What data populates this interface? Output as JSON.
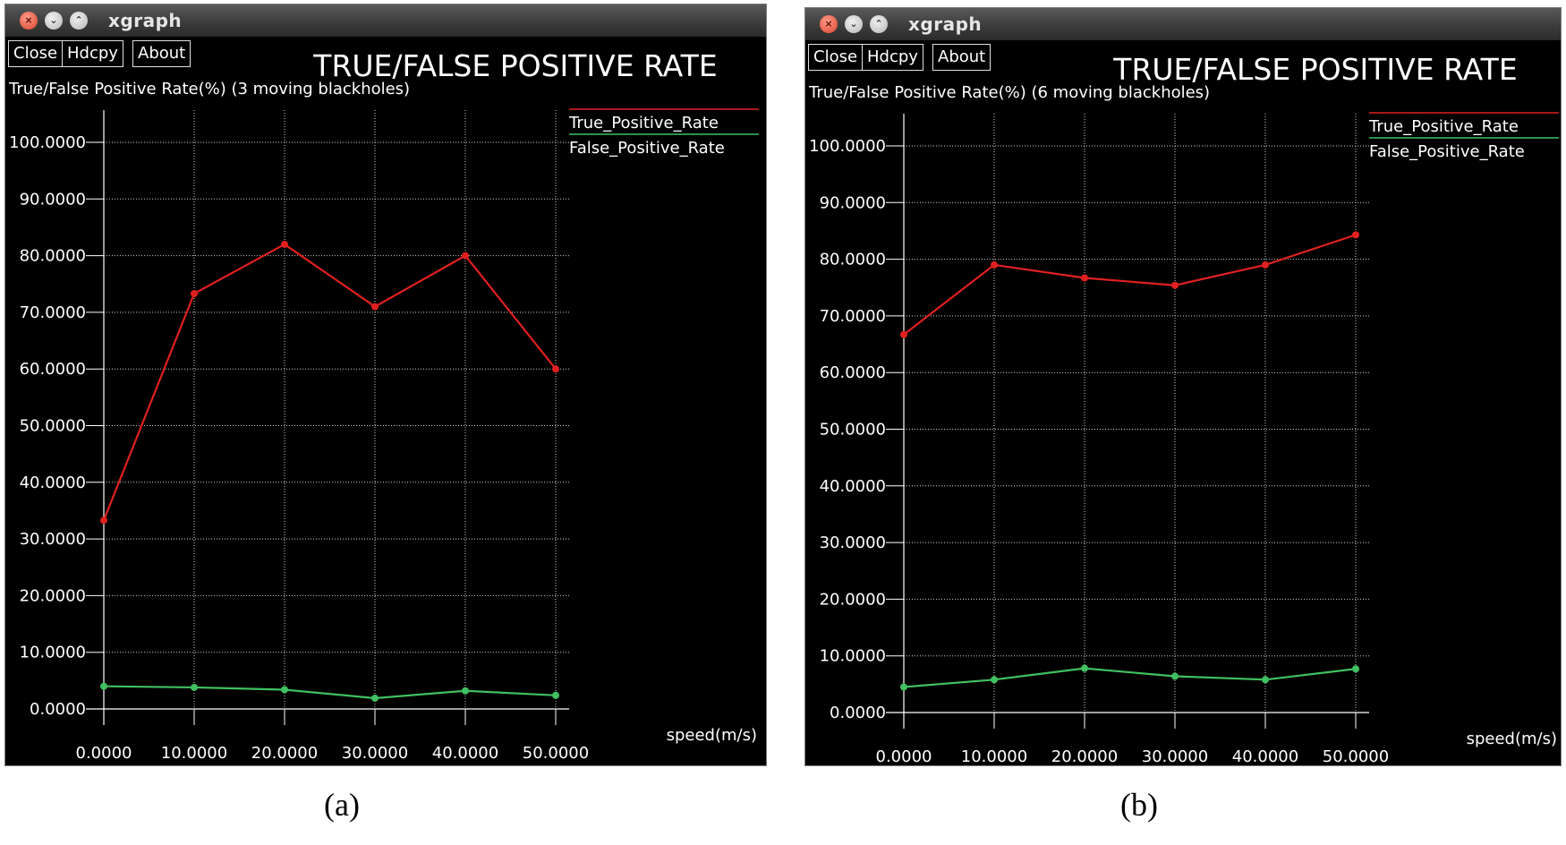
{
  "windows": [
    {
      "app_title": "xgraph",
      "buttons": {
        "close": "Close",
        "hdcpy": "Hdcpy",
        "about": "About"
      },
      "caption": "(a)",
      "chart_data": {
        "type": "line",
        "title": "TRUE/FALSE POSITIVE RATE",
        "ylabel": "True/False Positive Rate(%) (3 moving blackholes)",
        "xlabel": "speed(m/s)",
        "x": [
          0,
          10,
          20,
          30,
          40,
          50
        ],
        "x_tick_labels": [
          "0.0000",
          "10.0000",
          "20.0000",
          "30.0000",
          "40.0000",
          "50.0000"
        ],
        "y_tick_labels": [
          "0.0000",
          "10.0000",
          "20.0000",
          "30.0000",
          "40.0000",
          "50.0000",
          "60.0000",
          "70.0000",
          "80.0000",
          "90.0000",
          "100.0000"
        ],
        "xlim": [
          0,
          50
        ],
        "ylim": [
          0,
          100
        ],
        "grid": true,
        "legend_position": "top-right",
        "series": [
          {
            "name": "True_Positive_Rate",
            "color": "#e02020",
            "values": [
              33.3,
              73.3,
              82.0,
              71.0,
              80.0,
              60.0
            ]
          },
          {
            "name": "False_Positive_Rate",
            "color": "#40c060",
            "values": [
              4.0,
              3.8,
              3.4,
              1.9,
              3.2,
              2.4
            ]
          }
        ]
      }
    },
    {
      "app_title": "xgraph",
      "buttons": {
        "close": "Close",
        "hdcpy": "Hdcpy",
        "about": "About"
      },
      "caption": "(b)",
      "chart_data": {
        "type": "line",
        "title": "TRUE/FALSE POSITIVE RATE",
        "ylabel": "True/False Positive Rate(%) (6 moving blackholes)",
        "xlabel": "speed(m/s)",
        "x": [
          0,
          10,
          20,
          30,
          40,
          50
        ],
        "x_tick_labels": [
          "0.0000",
          "10.0000",
          "20.0000",
          "30.0000",
          "40.0000",
          "50.0000"
        ],
        "y_tick_labels": [
          "0.0000",
          "10.0000",
          "20.0000",
          "30.0000",
          "40.0000",
          "50.0000",
          "60.0000",
          "70.0000",
          "80.0000",
          "90.0000",
          "100.0000"
        ],
        "xlim": [
          0,
          50
        ],
        "ylim": [
          0,
          100
        ],
        "grid": true,
        "legend_position": "top-right",
        "series": [
          {
            "name": "True_Positive_Rate",
            "color": "#e02020",
            "values": [
              66.7,
              79.0,
              76.7,
              75.4,
              79.0,
              84.3
            ]
          },
          {
            "name": "False_Positive_Rate",
            "color": "#40c060",
            "values": [
              4.5,
              5.8,
              7.8,
              6.4,
              5.8,
              7.7
            ]
          }
        ]
      }
    }
  ]
}
